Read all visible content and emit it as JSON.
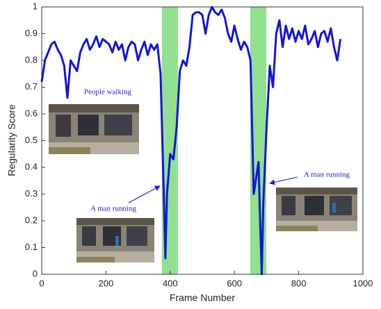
{
  "chart_data": {
    "type": "line",
    "xlabel": "Frame Number",
    "ylabel": "Regularity Score",
    "xlim": [
      0,
      1000
    ],
    "ylim": [
      0,
      1
    ],
    "xticks": [
      0,
      200,
      400,
      600,
      800,
      1000
    ],
    "yticks": [
      0,
      0.1,
      0.2,
      0.3,
      0.4,
      0.5,
      0.6,
      0.7,
      0.8,
      0.9,
      1
    ],
    "shaded_regions": [
      [
        374,
        424
      ],
      [
        649,
        699
      ]
    ],
    "shade_color": "#90e090",
    "annotations": [
      "People walking",
      "A man running",
      "A man running"
    ],
    "x": [
      0,
      10,
      20,
      30,
      40,
      50,
      60,
      70,
      80,
      90,
      100,
      110,
      120,
      130,
      140,
      150,
      160,
      170,
      180,
      190,
      200,
      210,
      220,
      230,
      240,
      250,
      260,
      270,
      280,
      290,
      300,
      310,
      320,
      330,
      340,
      350,
      360,
      370,
      380,
      385,
      390,
      400,
      410,
      420,
      430,
      440,
      450,
      460,
      470,
      480,
      490,
      500,
      510,
      520,
      530,
      540,
      550,
      560,
      570,
      580,
      590,
      600,
      610,
      620,
      630,
      640,
      650,
      660,
      670,
      675,
      680,
      685,
      690,
      700,
      710,
      720,
      730,
      740,
      750,
      760,
      770,
      780,
      790,
      800,
      810,
      820,
      830,
      840,
      850,
      860,
      870,
      880,
      890,
      900,
      910,
      920,
      930
    ],
    "series": [
      {
        "color": "#1414d8",
        "values": [
          0.72,
          0.8,
          0.83,
          0.86,
          0.87,
          0.84,
          0.82,
          0.78,
          0.66,
          0.8,
          0.78,
          0.76,
          0.83,
          0.86,
          0.88,
          0.84,
          0.86,
          0.89,
          0.85,
          0.88,
          0.87,
          0.86,
          0.83,
          0.87,
          0.84,
          0.86,
          0.8,
          0.85,
          0.87,
          0.86,
          0.8,
          0.84,
          0.87,
          0.82,
          0.86,
          0.84,
          0.86,
          0.75,
          0.3,
          0.06,
          0.3,
          0.45,
          0.43,
          0.55,
          0.76,
          0.8,
          0.78,
          0.85,
          0.97,
          0.98,
          0.98,
          0.97,
          0.9,
          0.97,
          1.0,
          0.98,
          0.97,
          0.99,
          0.96,
          0.9,
          0.87,
          0.93,
          0.88,
          0.84,
          0.87,
          0.85,
          0.8,
          0.3,
          0.38,
          0.42,
          0.2,
          0.0,
          0.27,
          0.55,
          0.78,
          0.7,
          0.9,
          0.95,
          0.85,
          0.93,
          0.88,
          0.92,
          0.87,
          0.91,
          0.88,
          0.93,
          0.86,
          0.88,
          0.91,
          0.85,
          0.9,
          0.91,
          0.87,
          0.92,
          0.85,
          0.8,
          0.88
        ]
      }
    ]
  }
}
